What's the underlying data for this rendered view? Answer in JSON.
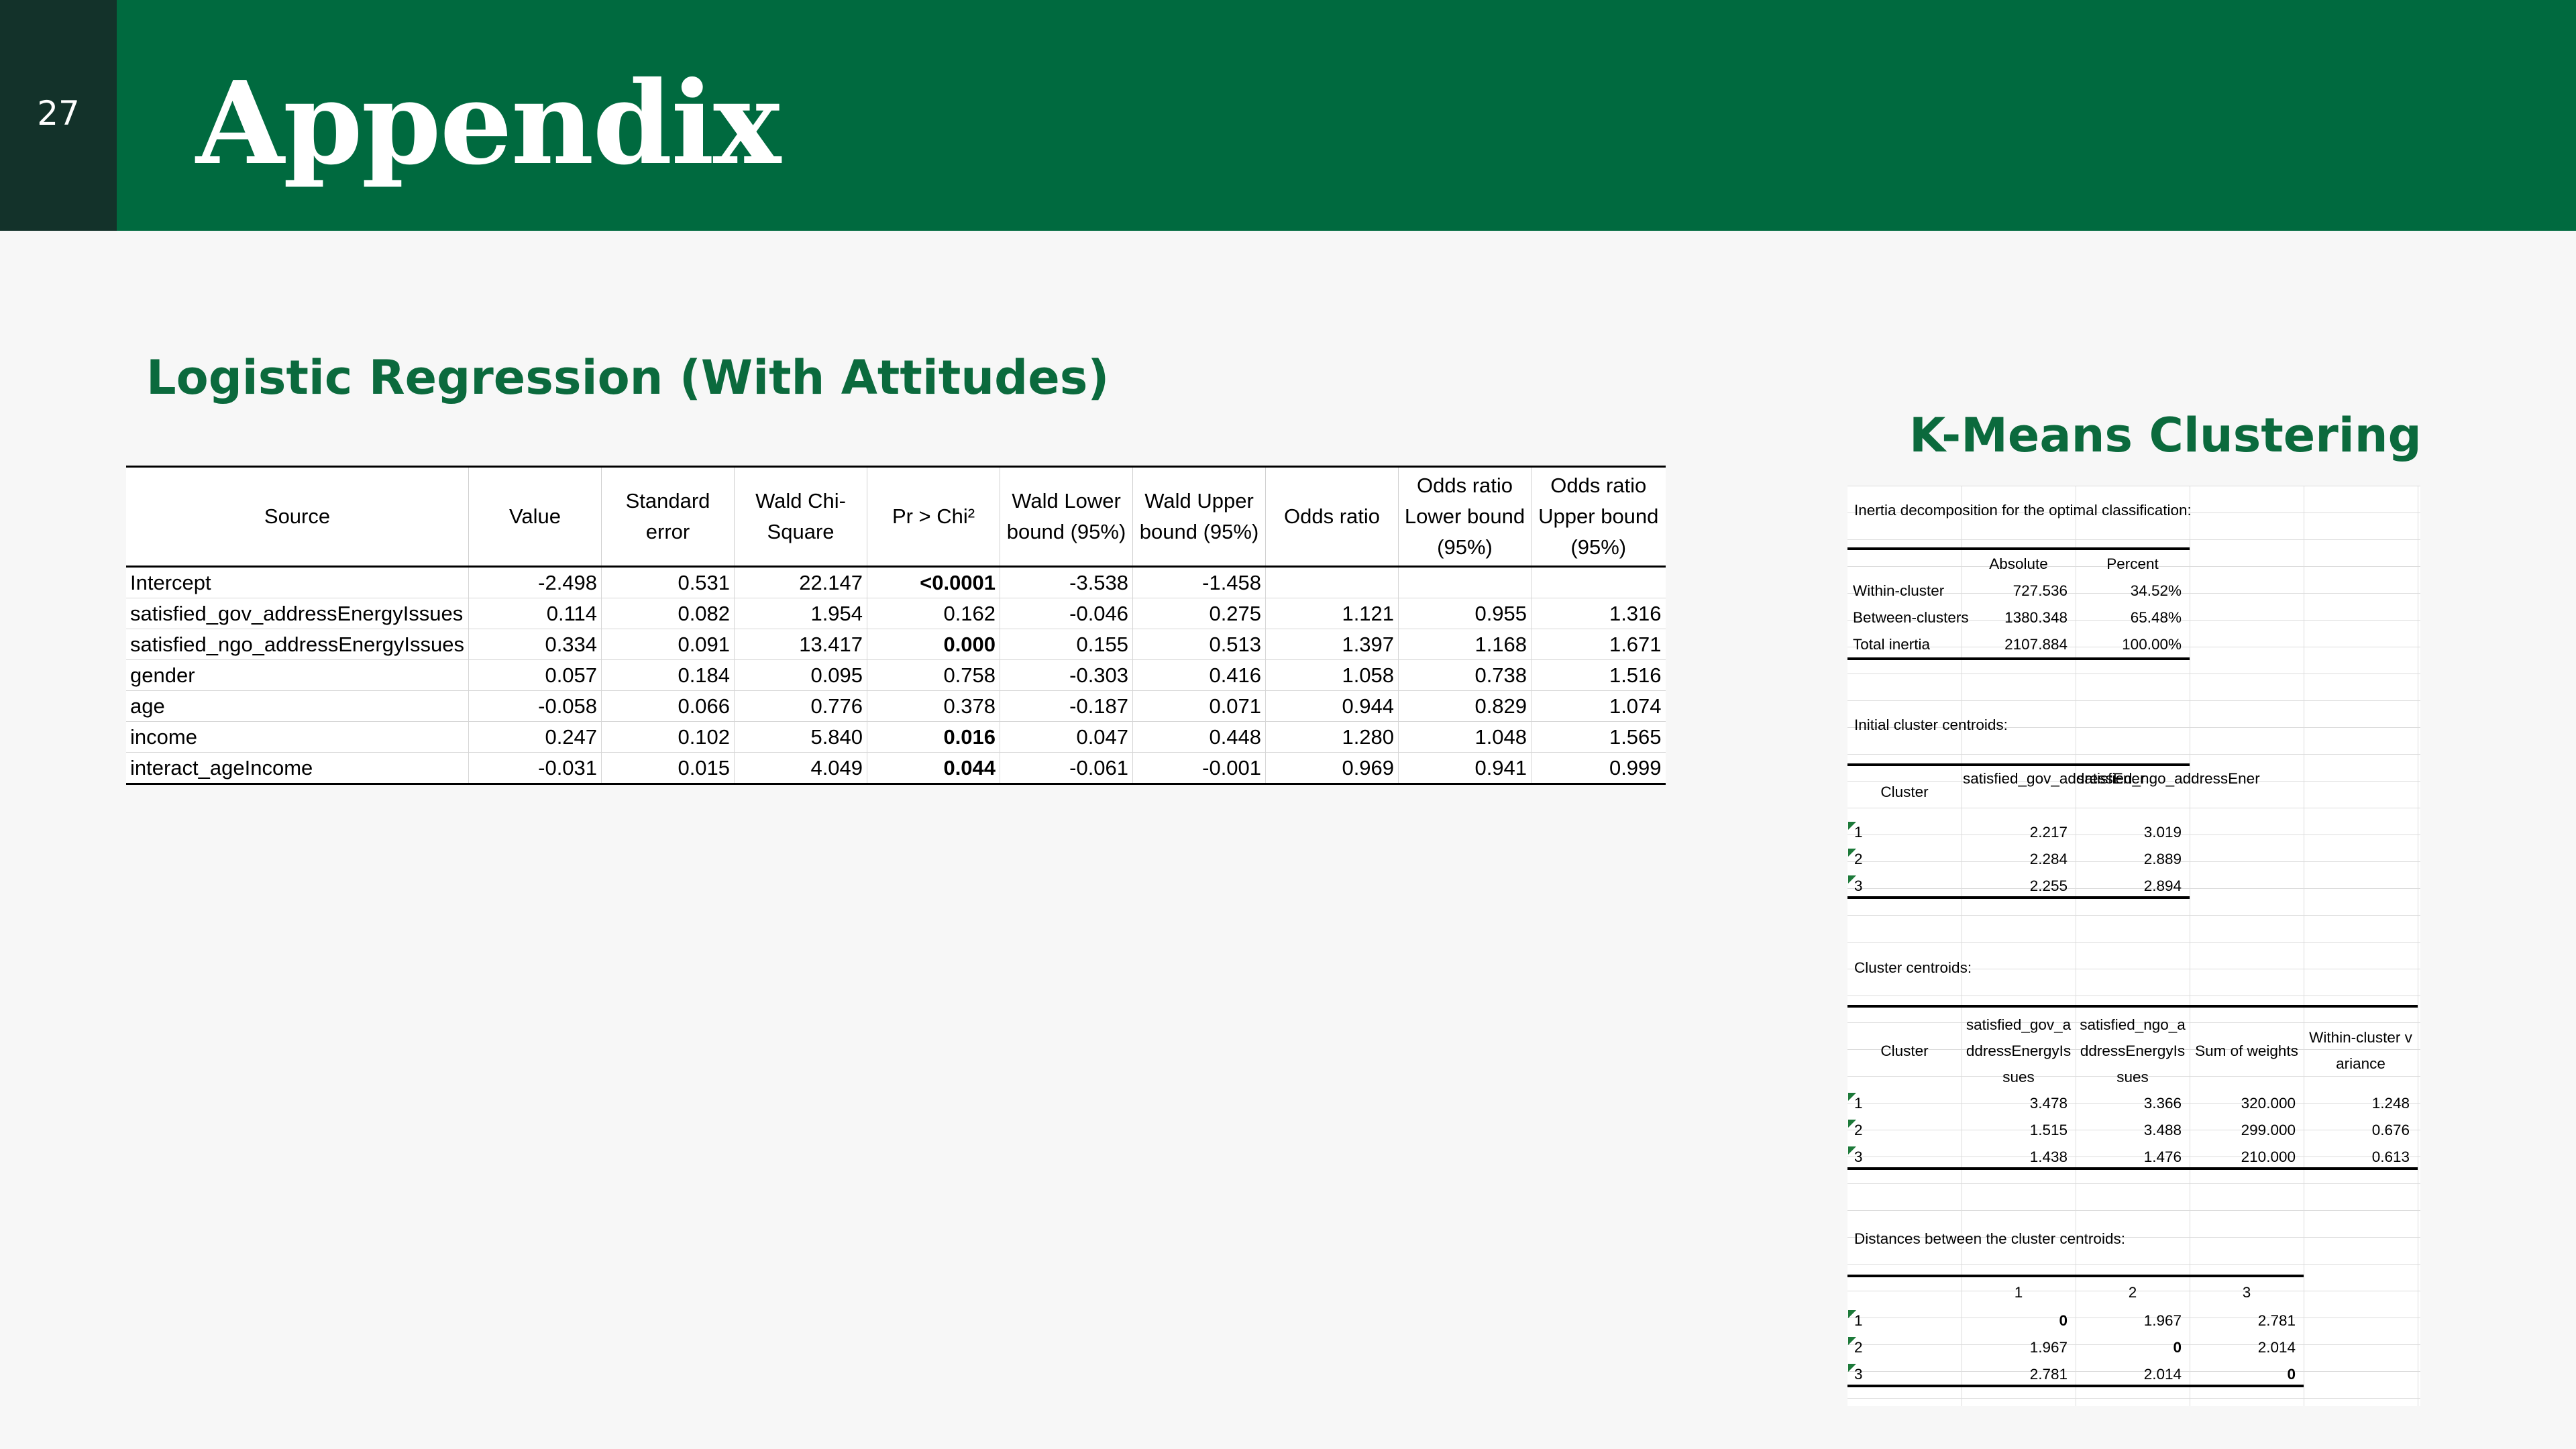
{
  "slide": {
    "page_number": "27",
    "title": "Appendix"
  },
  "logistic": {
    "title": "Logistic Regression (With Attitudes)",
    "headers": [
      "Source",
      "Value",
      "Standard error",
      "Wald Chi-Square",
      "Pr > Chi²",
      "Wald Lower bound (95%)",
      "Wald Upper bound (95%)",
      "Odds ratio",
      "Odds ratio Lower bound (95%)",
      "Odds ratio Upper bound (95%)"
    ],
    "rows": [
      [
        "Intercept",
        "-2.498",
        "0.531",
        "22.147",
        "<0.0001",
        "-3.538",
        "-1.458",
        "",
        "",
        ""
      ],
      [
        "satisfied_gov_addressEnergyIssues",
        "0.114",
        "0.082",
        "1.954",
        "0.162",
        "-0.046",
        "0.275",
        "1.121",
        "0.955",
        "1.316"
      ],
      [
        "satisfied_ngo_addressEnergyIssues",
        "0.334",
        "0.091",
        "13.417",
        "0.000",
        "0.155",
        "0.513",
        "1.397",
        "1.168",
        "1.671"
      ],
      [
        "gender",
        "0.057",
        "0.184",
        "0.095",
        "0.758",
        "-0.303",
        "0.416",
        "1.058",
        "0.738",
        "1.516"
      ],
      [
        "age",
        "-0.058",
        "0.066",
        "0.776",
        "0.378",
        "-0.187",
        "0.071",
        "0.944",
        "0.829",
        "1.074"
      ],
      [
        "income",
        "0.247",
        "0.102",
        "5.840",
        "0.016",
        "0.047",
        "0.448",
        "1.280",
        "1.048",
        "1.565"
      ],
      [
        "interact_ageIncome",
        "-0.031",
        "0.015",
        "4.049",
        "0.044",
        "-0.061",
        "-0.001",
        "0.969",
        "0.941",
        "0.999"
      ]
    ],
    "bold_pvalues": [
      true,
      false,
      true,
      false,
      false,
      true,
      true
    ]
  },
  "kmeans": {
    "title": "K-Means Clustering",
    "inertia_label": "Inertia decomposition for the optimal classification:",
    "inertia_headers": [
      "Absolute",
      "Percent"
    ],
    "inertia_rows": [
      [
        "Within-cluster",
        "727.536",
        "34.52%"
      ],
      [
        "Between-clusters",
        "1380.348",
        "65.48%"
      ],
      [
        "Total inertia",
        "2107.884",
        "100.00%"
      ]
    ],
    "initial_label": "Initial cluster centroids:",
    "initial_headers": [
      "Cluster",
      "satisfied_gov_addressEner",
      "satisfied_ngo_addressEner"
    ],
    "initial_rows": [
      [
        "1",
        "2.217",
        "3.019"
      ],
      [
        "2",
        "2.284",
        "2.889"
      ],
      [
        "3",
        "2.255",
        "2.894"
      ]
    ],
    "centroids_label": "Cluster centroids:",
    "centroids_headers": [
      "Cluster",
      "satisfied_gov_addressEnergyIssues",
      "satisfied_ngo_addressEnergyIssues",
      "Sum of weights",
      "Within-cluster variance"
    ],
    "centroids_rows": [
      [
        "1",
        "3.478",
        "3.366",
        "320.000",
        "1.248"
      ],
      [
        "2",
        "1.515",
        "3.488",
        "299.000",
        "0.676"
      ],
      [
        "3",
        "1.438",
        "1.476",
        "210.000",
        "0.613"
      ]
    ],
    "distances_label": "Distances between the cluster centroids:",
    "distances_headers": [
      "1",
      "2",
      "3"
    ],
    "distances_rows": [
      [
        "1",
        "0",
        "1.967",
        "2.781"
      ],
      [
        "2",
        "1.967",
        "0",
        "2.014"
      ],
      [
        "3",
        "2.781",
        "2.014",
        "0"
      ]
    ]
  }
}
